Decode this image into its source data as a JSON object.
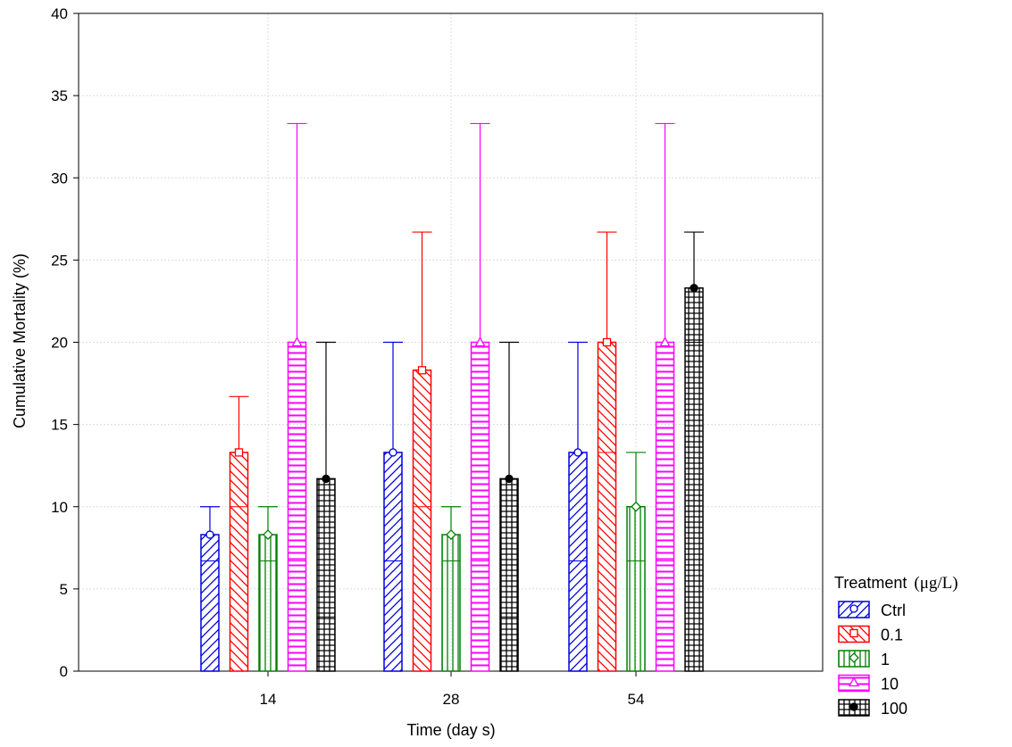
{
  "chart_data": {
    "type": "bar",
    "xlabel": "Time (day s)",
    "ylabel": "Cumulative Mortality (%)",
    "ylim": [
      0,
      40
    ],
    "yticks": [
      0,
      5,
      10,
      15,
      20,
      25,
      30,
      35,
      40
    ],
    "categories": [
      "14",
      "28",
      "54"
    ],
    "grid": true,
    "legend": {
      "title": "Treatment",
      "title_unit": "(μg/L)",
      "placement": "right-bottom"
    },
    "series": [
      {
        "name": "Ctrl",
        "color": "#0000dd",
        "pattern": "diagonal-forward",
        "marker": "circle",
        "values": [
          8.3,
          13.3,
          13.3
        ],
        "inner_line": [
          6.7,
          6.7,
          6.7
        ],
        "error_upper": [
          10.0,
          20.0,
          20.0
        ]
      },
      {
        "name": "0.1",
        "color": "#ff0000",
        "pattern": "diagonal-backward",
        "marker": "square",
        "values": [
          13.3,
          18.3,
          20.0
        ],
        "inner_line": [
          10.0,
          10.0,
          13.3
        ],
        "error_upper": [
          16.7,
          26.7,
          26.7
        ]
      },
      {
        "name": "1",
        "color": "#008000",
        "pattern": "vertical",
        "marker": "diamond",
        "values": [
          8.3,
          8.3,
          10.0
        ],
        "inner_line": [
          6.7,
          6.7,
          6.7
        ],
        "error_upper": [
          10.0,
          10.0,
          13.3
        ]
      },
      {
        "name": "10",
        "color": "#ff00ff",
        "pattern": "horizontal",
        "marker": "triangle",
        "values": [
          20.0,
          20.0,
          20.0
        ],
        "inner_line": [
          6.7,
          6.7,
          6.7
        ],
        "error_upper": [
          33.3,
          33.3,
          33.3
        ]
      },
      {
        "name": "100",
        "color": "#000000",
        "pattern": "grid",
        "marker": "filled-circle",
        "values": [
          11.7,
          11.7,
          23.3
        ],
        "inner_line": [
          3.3,
          3.3,
          20.0
        ],
        "error_upper": [
          20.0,
          20.0,
          26.7
        ]
      }
    ]
  }
}
